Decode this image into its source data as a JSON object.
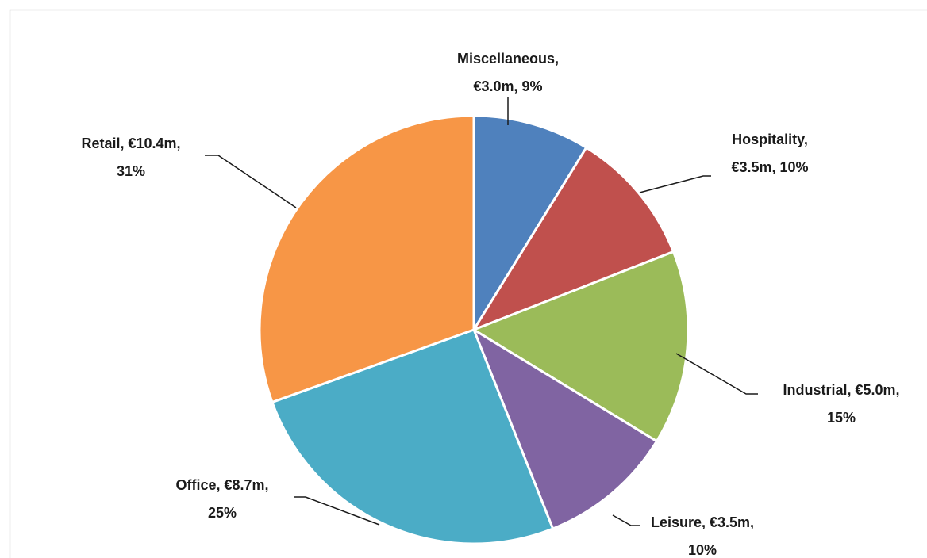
{
  "chart_data": {
    "type": "pie",
    "labels": [
      [
        "Miscellaneous,",
        "€3.0m, 9%"
      ],
      [
        "Hospitality,",
        "€3.5m, 10%"
      ],
      [
        "Industrial,  €5.0m,",
        "15%"
      ],
      [
        "Leisure, €3.5m,",
        "10%"
      ],
      [
        "Office, €8.7m,",
        "25%"
      ],
      [
        "Retail, €10.4m,",
        "31%"
      ]
    ],
    "values": [
      3.0,
      3.5,
      5.0,
      3.5,
      8.7,
      10.4
    ],
    "colors": [
      "#4f81bd",
      "#c0504d",
      "#9bbb59",
      "#8064a2",
      "#4bacc6",
      "#f79646"
    ]
  }
}
